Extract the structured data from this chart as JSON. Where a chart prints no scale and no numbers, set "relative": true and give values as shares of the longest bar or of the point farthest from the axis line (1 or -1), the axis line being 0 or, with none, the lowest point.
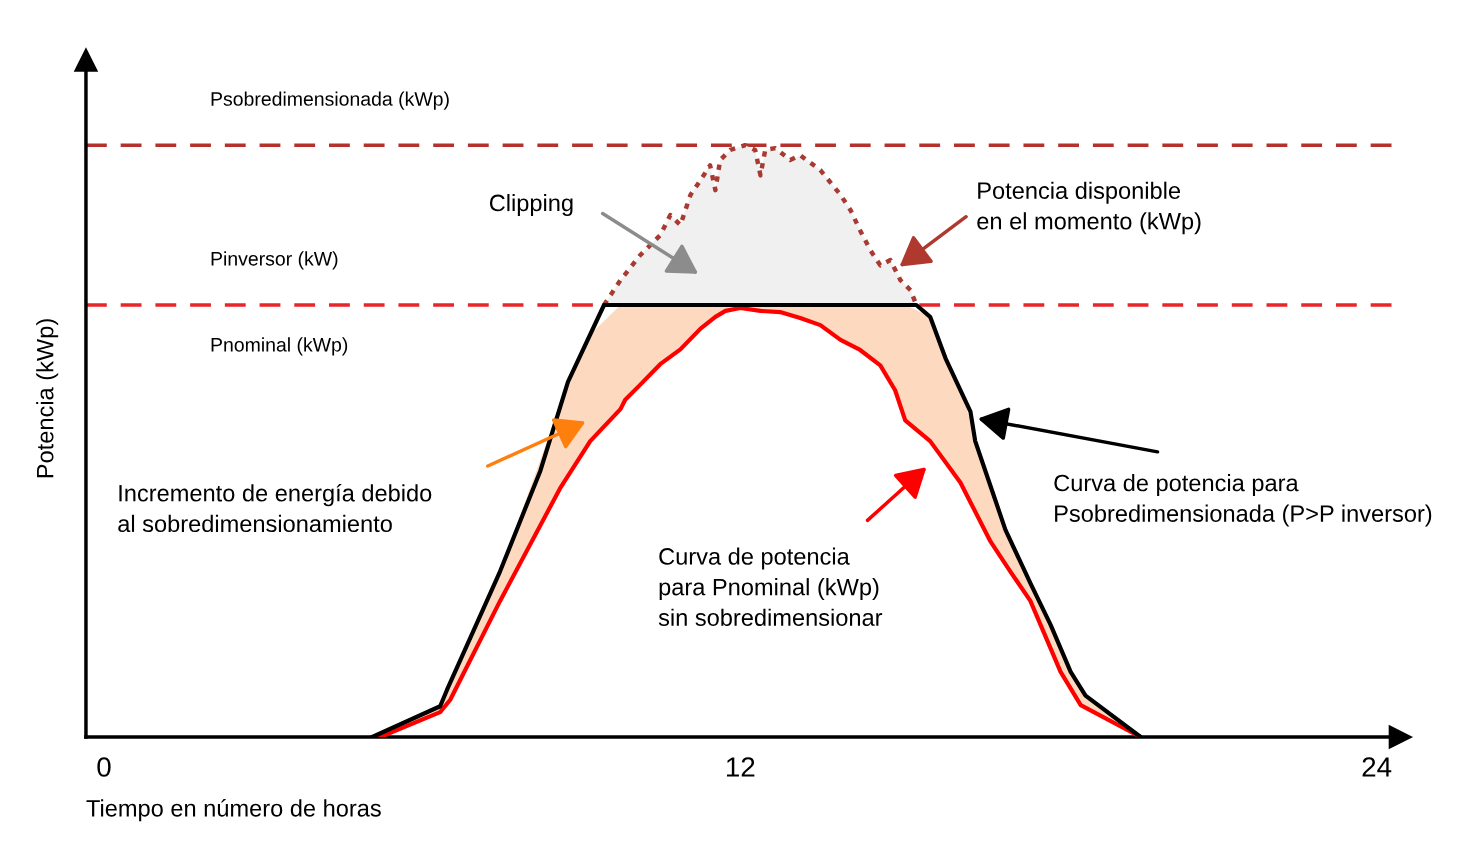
{
  "chart_data": {
    "type": "line",
    "relative": true,
    "xlabel": "Tiempo en número de horas",
    "ylabel": "Potencia (kWp)",
    "xlim": [
      -0.34,
      24.45
    ],
    "xticks": [
      0,
      12,
      24
    ],
    "tick_labels": "x",
    "grid": false,
    "legend": false,
    "marker": "none",
    "series": [
      {
        "color": "#000000",
        "line_style": "solid",
        "x": [
          5.06,
          6.34,
          6.47,
          6.72,
          7.47,
          8.23,
          8.75,
          9.43,
          15.32,
          15.58,
          15.87,
          16.34,
          16.43,
          16.62,
          16.81,
          17.0,
          17.47,
          17.85,
          18.23,
          18.51,
          19.55
        ],
        "values": [
          0,
          0.052,
          0.08,
          0.13,
          0.28,
          0.45,
          0.6,
          0.73,
          0.73,
          0.71,
          0.64,
          0.55,
          0.5,
          0.45,
          0.4,
          0.35,
          0.26,
          0.19,
          0.11,
          0.07,
          0
        ]
      },
      {
        "color": "#ff0000",
        "line_style": "solid",
        "x": [
          5.21,
          6.34,
          6.53,
          7.47,
          8.6,
          9.17,
          9.74,
          9.83,
          10.11,
          10.49,
          10.87,
          11.25,
          11.53,
          11.72,
          12.0,
          12.38,
          12.75,
          13.13,
          13.51,
          13.89,
          14.26,
          14.64,
          14.92,
          15.11,
          15.58,
          16.15,
          16.72,
          17.09,
          17.47,
          18.04,
          18.42,
          19.55
        ],
        "values": [
          0,
          0.042,
          0.063,
          0.23,
          0.42,
          0.5,
          0.554,
          0.57,
          0.595,
          0.63,
          0.655,
          0.69,
          0.71,
          0.72,
          0.725,
          0.72,
          0.718,
          0.708,
          0.696,
          0.671,
          0.654,
          0.628,
          0.586,
          0.535,
          0.5,
          0.43,
          0.33,
          0.28,
          0.23,
          0.11,
          0.054,
          0
        ],
        "lower": [
          0,
          0.042,
          0.063,
          0.23,
          0.42,
          0.5,
          0.554,
          0.57,
          0.595,
          0.63,
          0.655,
          0.69,
          0.71,
          0.72,
          0.725,
          0.72,
          0.718,
          0.708,
          0.696,
          0.671,
          0.654,
          0.628,
          0.586,
          0.535,
          0.5,
          0.43,
          0.33,
          0.28,
          0.23,
          0.11,
          0.054,
          0
        ],
        "upper": [
          0.006,
          0.052,
          0.09,
          0.28,
          0.56,
          0.68,
          0.73,
          0.73,
          0.73,
          0.73,
          0.73,
          0.73,
          0.73,
          0.73,
          0.73,
          0.73,
          0.73,
          0.73,
          0.73,
          0.73,
          0.73,
          0.73,
          0.73,
          0.73,
          0.71,
          0.59,
          0.42,
          0.33,
          0.26,
          0.15,
          0.08,
          0
        ]
      },
      {
        "color": "#a93a33",
        "line_style": "dotted",
        "x": [
          9.43,
          9.74,
          10.11,
          10.49,
          10.68,
          10.87,
          11.06,
          11.25,
          11.43,
          11.53,
          11.62,
          11.81,
          12.09,
          12.28,
          12.38,
          12.47,
          12.66,
          12.94,
          13.13,
          13.51,
          13.89,
          14.08,
          14.26,
          14.45,
          14.64,
          14.83,
          15.02,
          15.21,
          15.32
        ],
        "values": [
          0.73,
          0.772,
          0.814,
          0.848,
          0.882,
          0.865,
          0.916,
          0.941,
          0.966,
          0.924,
          0.975,
          0.992,
          1.0,
          0.992,
          0.949,
          0.992,
          0.995,
          0.975,
          0.983,
          0.958,
          0.916,
          0.89,
          0.856,
          0.823,
          0.797,
          0.806,
          0.772,
          0.755,
          0.73
        ],
        "lower": [
          0.73,
          0.73,
          0.73,
          0.73,
          0.73,
          0.73,
          0.73,
          0.73,
          0.73,
          0.73,
          0.73,
          0.73,
          0.73,
          0.73,
          0.73,
          0.73,
          0.73,
          0.73,
          0.73,
          0.73,
          0.73,
          0.73,
          0.73,
          0.73,
          0.73,
          0.73,
          0.73,
          0.73,
          0.73
        ],
        "upper": [
          0.73,
          0.772,
          0.814,
          0.848,
          0.882,
          0.865,
          0.916,
          0.941,
          0.966,
          0.924,
          0.975,
          0.992,
          1.0,
          0.992,
          0.949,
          0.992,
          0.995,
          0.975,
          0.983,
          0.958,
          0.916,
          0.89,
          0.856,
          0.823,
          0.797,
          0.806,
          0.772,
          0.755,
          0.73
        ]
      }
    ],
    "ref_lines": [
      {
        "axis": "y",
        "value": 1.0,
        "label": "Psobredimensionada (kWp)",
        "color": "#b5322c",
        "line_style": "dashed"
      },
      {
        "axis": "y",
        "value": 0.73,
        "label": "Pinversor (kW)",
        "color": "#e8262a",
        "line_style": "dashed"
      }
    ],
    "annotations": [
      "Pnominal (kWp)",
      "Clipping",
      "Potencia disponible\nen el momento (kWp)",
      "Incremento de energía debido\nal sobredimensionamiento",
      "Curva de potencia para\nPsobredimensionada (P>P inversor)",
      "Curva de potencia\npara Pnominal (kWp)\nsin sobredimensionar"
    ]
  }
}
